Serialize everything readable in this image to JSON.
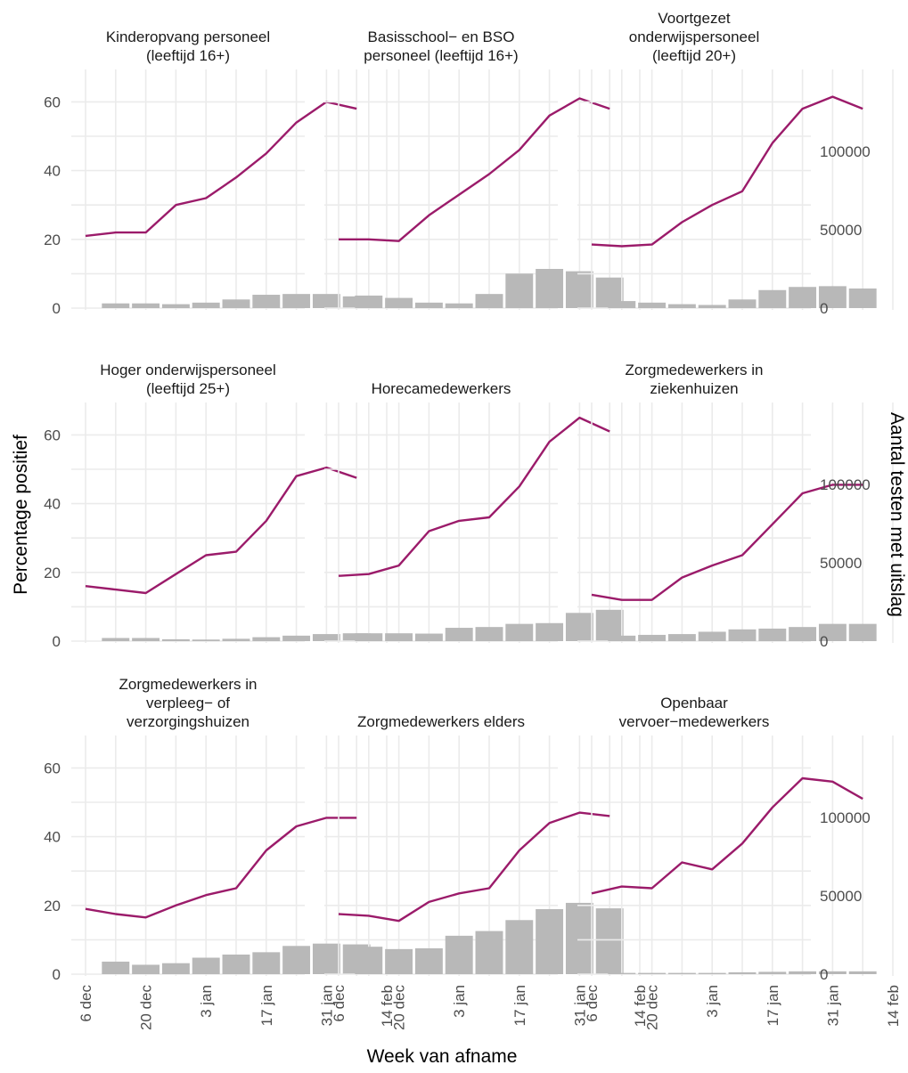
{
  "chart_data": {
    "type": "line",
    "title": "",
    "xlabel": "Week van afname",
    "ylabel": "Percentage positief",
    "y2label": "Aantal testen met uitslag",
    "ylim": [
      0,
      70
    ],
    "y2lim": [
      0,
      150000
    ],
    "yticks": [
      0,
      20,
      40,
      60
    ],
    "y2ticks": [
      0,
      50000,
      100000
    ],
    "xlim": [
      -2,
      72
    ],
    "xticks": [
      {
        "day": 0,
        "label": "6 dec"
      },
      {
        "day": 14,
        "label": "20 dec"
      },
      {
        "day": 28,
        "label": "3 jan"
      },
      {
        "day": 42,
        "label": "17 jan"
      },
      {
        "day": 56,
        "label": "31 jan"
      },
      {
        "day": 70,
        "label": "14 feb"
      }
    ],
    "x_days": [
      0,
      7,
      14,
      21,
      28,
      35,
      42,
      49,
      56,
      63
    ],
    "line_color": "#9b1b6a",
    "bar_color": "#b8b8b8",
    "grid": true,
    "facets": [
      {
        "title": [
          "Kinderopvang personeel",
          "(leeftijd 16+)"
        ],
        "percentage_positief": [
          21,
          22,
          22,
          30,
          32,
          38,
          45,
          54,
          60,
          58
        ],
        "aantal_testen": [
          null,
          3000,
          3000,
          2500,
          3500,
          5500,
          8500,
          9000,
          9000,
          7500
        ]
      },
      {
        "title": [
          "Basisschool− en BSO",
          "personeel (leeftijd 16+)"
        ],
        "percentage_positief": [
          20,
          20,
          19.5,
          27,
          33,
          39,
          46,
          56,
          61,
          58
        ],
        "aantal_testen": [
          null,
          8000,
          6500,
          3500,
          3000,
          9000,
          22000,
          25000,
          23500,
          19500
        ]
      },
      {
        "title": [
          "Voortgezet",
          "onderwijspersoneel",
          "(leeftijd 20+)"
        ],
        "percentage_positief": [
          18.5,
          18,
          18.5,
          25,
          30,
          34,
          48,
          58,
          61.5,
          58
        ],
        "aantal_testen": [
          null,
          4500,
          3500,
          2500,
          2000,
          5500,
          11500,
          13500,
          14000,
          12500
        ]
      },
      {
        "title": [
          "Hoger onderwijspersoneel",
          "(leeftijd 25+)"
        ],
        "percentage_positief": [
          16,
          15,
          14,
          19.5,
          25,
          26,
          35,
          48,
          50.5,
          47.5
        ],
        "aantal_testen": [
          null,
          2000,
          2000,
          1200,
          1000,
          1500,
          2500,
          3500,
          4500,
          5000
        ]
      },
      {
        "title": [
          "Horecamedewerkers"
        ],
        "percentage_positief": [
          19,
          19.5,
          22,
          32,
          35,
          36,
          45,
          58,
          65,
          61
        ],
        "aantal_testen": [
          null,
          5000,
          5000,
          4800,
          8500,
          9000,
          11000,
          11500,
          18000,
          20000
        ]
      },
      {
        "title": [
          "Zorgmedewerkers in",
          "ziekenhuizen"
        ],
        "percentage_positief": [
          13.5,
          12,
          12,
          18.5,
          22,
          25,
          34,
          43,
          45.5,
          45.5
        ],
        "aantal_testen": [
          null,
          3500,
          4000,
          4500,
          6000,
          7500,
          8000,
          9000,
          11000,
          11000
        ]
      },
      {
        "title": [
          "Zorgmedewerkers in",
          "verpleeg− of",
          "verzorgingshuizen"
        ],
        "percentage_positief": [
          19,
          17.5,
          16.5,
          20,
          23,
          25,
          36,
          43,
          45.5,
          45.5
        ],
        "aantal_testen": [
          null,
          8000,
          6000,
          7000,
          10500,
          12500,
          14000,
          18000,
          19500,
          19000
        ]
      },
      {
        "title": [
          "Zorgmedewerkers elders"
        ],
        "percentage_positief": [
          17.5,
          17,
          15.5,
          21,
          23.5,
          25,
          36,
          44,
          47,
          46
        ],
        "aantal_testen": [
          null,
          17500,
          16000,
          16500,
          24500,
          27500,
          34500,
          41500,
          45500,
          42000
        ]
      },
      {
        "title": [
          "Openbaar",
          "vervoer−medewerkers"
        ],
        "percentage_positief": [
          23.5,
          25.5,
          25,
          32.5,
          30.5,
          38,
          48.5,
          57,
          56,
          51
        ],
        "aantal_testen": [
          null,
          800,
          800,
          800,
          800,
          1200,
          1500,
          1800,
          1800,
          1800
        ]
      }
    ]
  }
}
